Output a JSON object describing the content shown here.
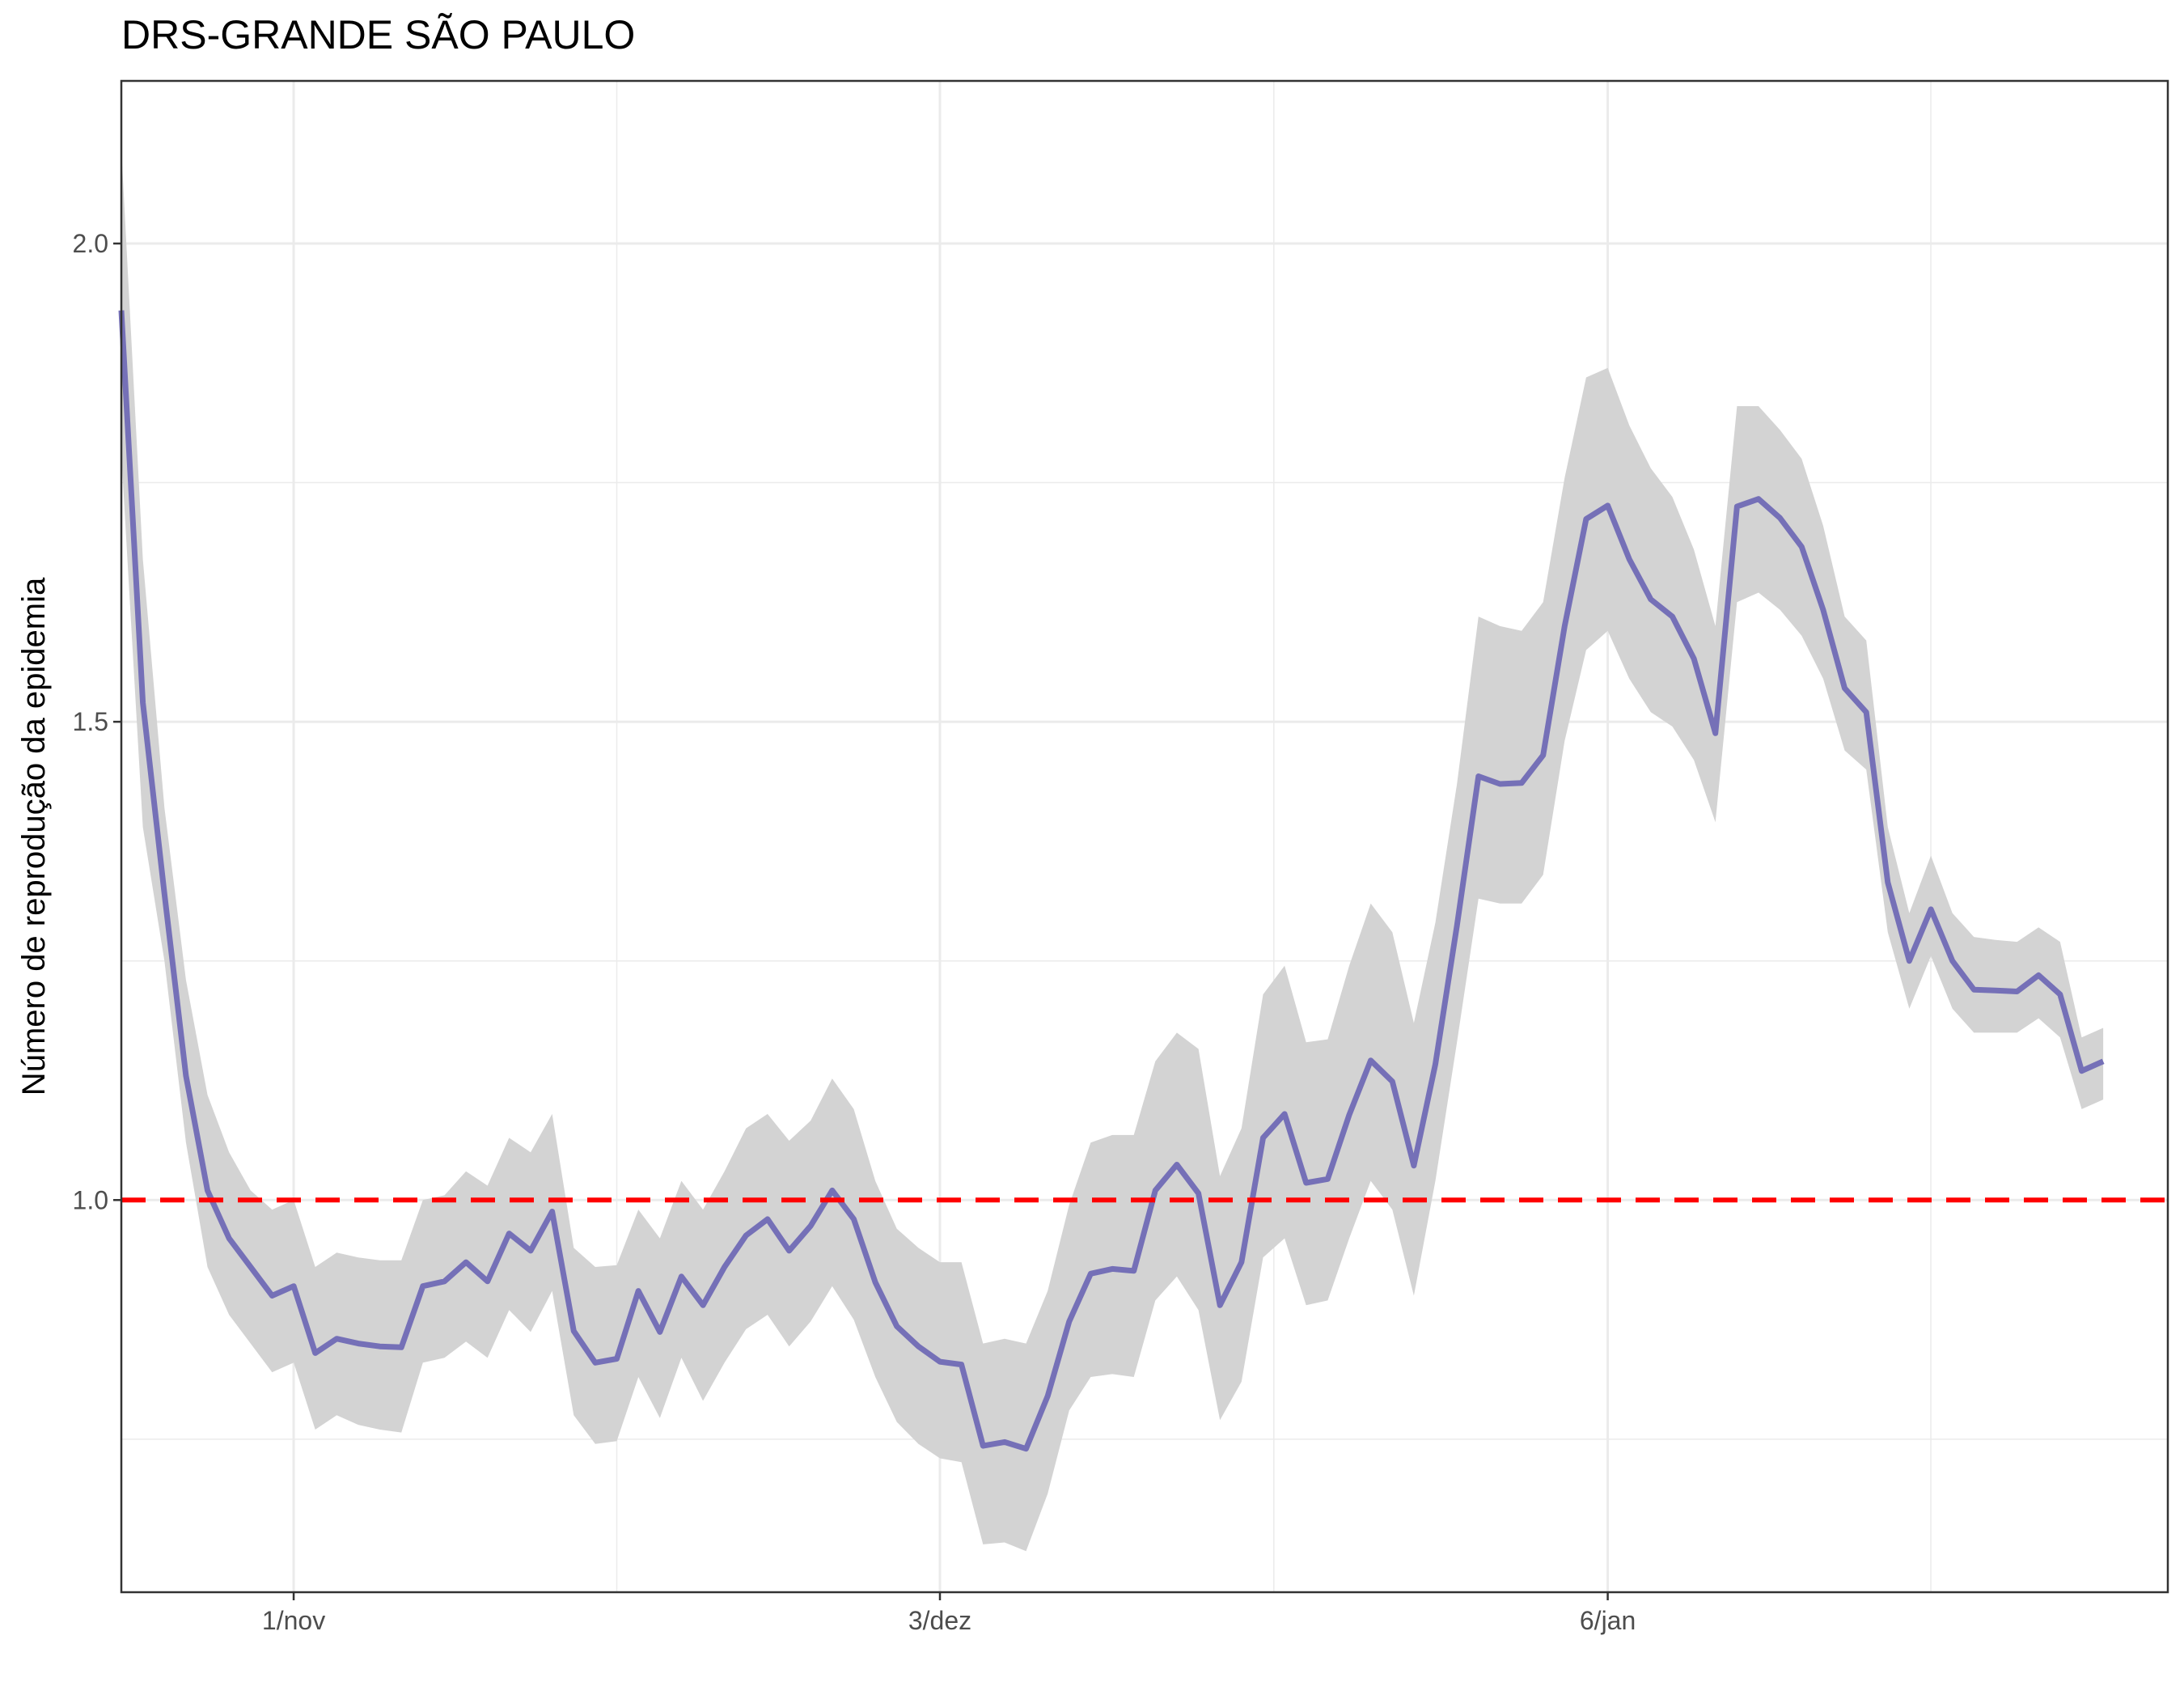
{
  "chart_data": {
    "type": "line",
    "title": "DRS-GRANDE SÃO PAULO",
    "xlabel": "",
    "ylabel": "Número de reprodução da epidemia",
    "x_unit": "days since 1/nov",
    "xlim": [
      -8,
      87
    ],
    "ylim": [
      0.59,
      2.17
    ],
    "y_ticks": [
      {
        "value": 1.0,
        "label": "1.0"
      },
      {
        "value": 1.5,
        "label": "1.5"
      },
      {
        "value": 2.0,
        "label": "2.0"
      }
    ],
    "y_minor": [
      0.75,
      1.25,
      1.75
    ],
    "x_ticks": [
      {
        "value": 0,
        "label": "1/nov"
      },
      {
        "value": 30,
        "label": "3/dez"
      },
      {
        "value": 61,
        "label": "6/jan"
      }
    ],
    "x_minor": [
      15,
      45.5,
      76
    ],
    "reference_line": {
      "value": 1.0,
      "style": "dashed",
      "color": "#ff0000"
    },
    "series": [
      {
        "name": "R",
        "color": "#7570b7",
        "ribbon_color": "#d3d3d3",
        "x": [
          -8,
          -7,
          -6,
          -5,
          -4,
          -3,
          -2,
          -1,
          0,
          1,
          2,
          3,
          4,
          5,
          6,
          7,
          8,
          9,
          10,
          11,
          12,
          13,
          14,
          15,
          16,
          17,
          18,
          19,
          20,
          21,
          22,
          23,
          24,
          25,
          26,
          27,
          28,
          29,
          30,
          31,
          32,
          33,
          34,
          35,
          36,
          37,
          38,
          39,
          40,
          41,
          42,
          43,
          44,
          45,
          46,
          47,
          48,
          49,
          50,
          51,
          52,
          53,
          54,
          55,
          56,
          57,
          58,
          59,
          60,
          61,
          62,
          63,
          64,
          65,
          66,
          67,
          68,
          69,
          70,
          71,
          72,
          73,
          74,
          75,
          76,
          77,
          78,
          79,
          80,
          81,
          82,
          83,
          84
        ],
        "values": [
          1.93,
          1.52,
          1.32,
          1.13,
          1.01,
          0.96,
          0.93,
          0.9,
          0.91,
          0.84,
          0.855,
          0.85,
          0.847,
          0.846,
          0.91,
          0.915,
          0.935,
          0.915,
          0.965,
          0.947,
          0.988,
          0.863,
          0.83,
          0.834,
          0.905,
          0.862,
          0.92,
          0.89,
          0.93,
          0.963,
          0.98,
          0.947,
          0.973,
          1.01,
          0.98,
          0.914,
          0.868,
          0.847,
          0.831,
          0.828,
          0.743,
          0.747,
          0.74,
          0.795,
          0.873,
          0.923,
          0.928,
          0.926,
          1.01,
          1.037,
          1.007,
          0.89,
          0.935,
          1.065,
          1.09,
          1.018,
          1.022,
          1.089,
          1.146,
          1.124,
          1.036,
          1.142,
          1.287,
          1.443,
          1.435,
          1.436,
          1.465,
          1.6,
          1.712,
          1.726,
          1.67,
          1.628,
          1.61,
          1.566,
          1.488,
          1.725,
          1.733,
          1.713,
          1.683,
          1.617,
          1.535,
          1.51,
          1.332,
          1.25,
          1.304,
          1.25,
          1.22,
          1.219,
          1.218,
          1.235,
          1.215,
          1.135,
          1.145
        ],
        "lower": [
          1.78,
          1.39,
          1.25,
          1.06,
          0.93,
          0.88,
          0.85,
          0.82,
          0.83,
          0.76,
          0.775,
          0.765,
          0.76,
          0.757,
          0.83,
          0.835,
          0.852,
          0.835,
          0.885,
          0.862,
          0.905,
          0.775,
          0.745,
          0.748,
          0.815,
          0.772,
          0.835,
          0.79,
          0.83,
          0.865,
          0.88,
          0.847,
          0.873,
          0.91,
          0.875,
          0.815,
          0.768,
          0.745,
          0.73,
          0.726,
          0.64,
          0.642,
          0.633,
          0.693,
          0.78,
          0.815,
          0.818,
          0.815,
          0.895,
          0.92,
          0.885,
          0.77,
          0.81,
          0.94,
          0.96,
          0.89,
          0.895,
          0.96,
          1.02,
          0.99,
          0.9,
          1.02,
          1.165,
          1.315,
          1.31,
          1.31,
          1.34,
          1.48,
          1.575,
          1.595,
          1.545,
          1.51,
          1.495,
          1.46,
          1.395,
          1.625,
          1.635,
          1.617,
          1.59,
          1.545,
          1.47,
          1.45,
          1.28,
          1.2,
          1.255,
          1.2,
          1.175,
          1.175,
          1.175,
          1.19,
          1.17,
          1.095,
          1.105
        ],
        "upper": [
          2.1,
          1.67,
          1.41,
          1.23,
          1.11,
          1.05,
          1.01,
          0.99,
          1.0,
          0.93,
          0.945,
          0.94,
          0.937,
          0.937,
          1.0,
          1.005,
          1.03,
          1.015,
          1.065,
          1.05,
          1.09,
          0.95,
          0.93,
          0.932,
          0.99,
          0.96,
          1.02,
          0.99,
          1.03,
          1.075,
          1.09,
          1.062,
          1.083,
          1.127,
          1.095,
          1.02,
          0.97,
          0.95,
          0.935,
          0.935,
          0.85,
          0.855,
          0.85,
          0.905,
          0.995,
          1.06,
          1.068,
          1.068,
          1.145,
          1.175,
          1.158,
          1.025,
          1.075,
          1.215,
          1.245,
          1.165,
          1.168,
          1.245,
          1.31,
          1.28,
          1.185,
          1.29,
          1.435,
          1.61,
          1.6,
          1.595,
          1.625,
          1.755,
          1.86,
          1.87,
          1.81,
          1.765,
          1.735,
          1.68,
          1.6,
          1.83,
          1.83,
          1.805,
          1.775,
          1.705,
          1.61,
          1.585,
          1.39,
          1.3,
          1.36,
          1.3,
          1.275,
          1.272,
          1.27,
          1.285,
          1.27,
          1.17,
          1.18
        ]
      }
    ]
  }
}
